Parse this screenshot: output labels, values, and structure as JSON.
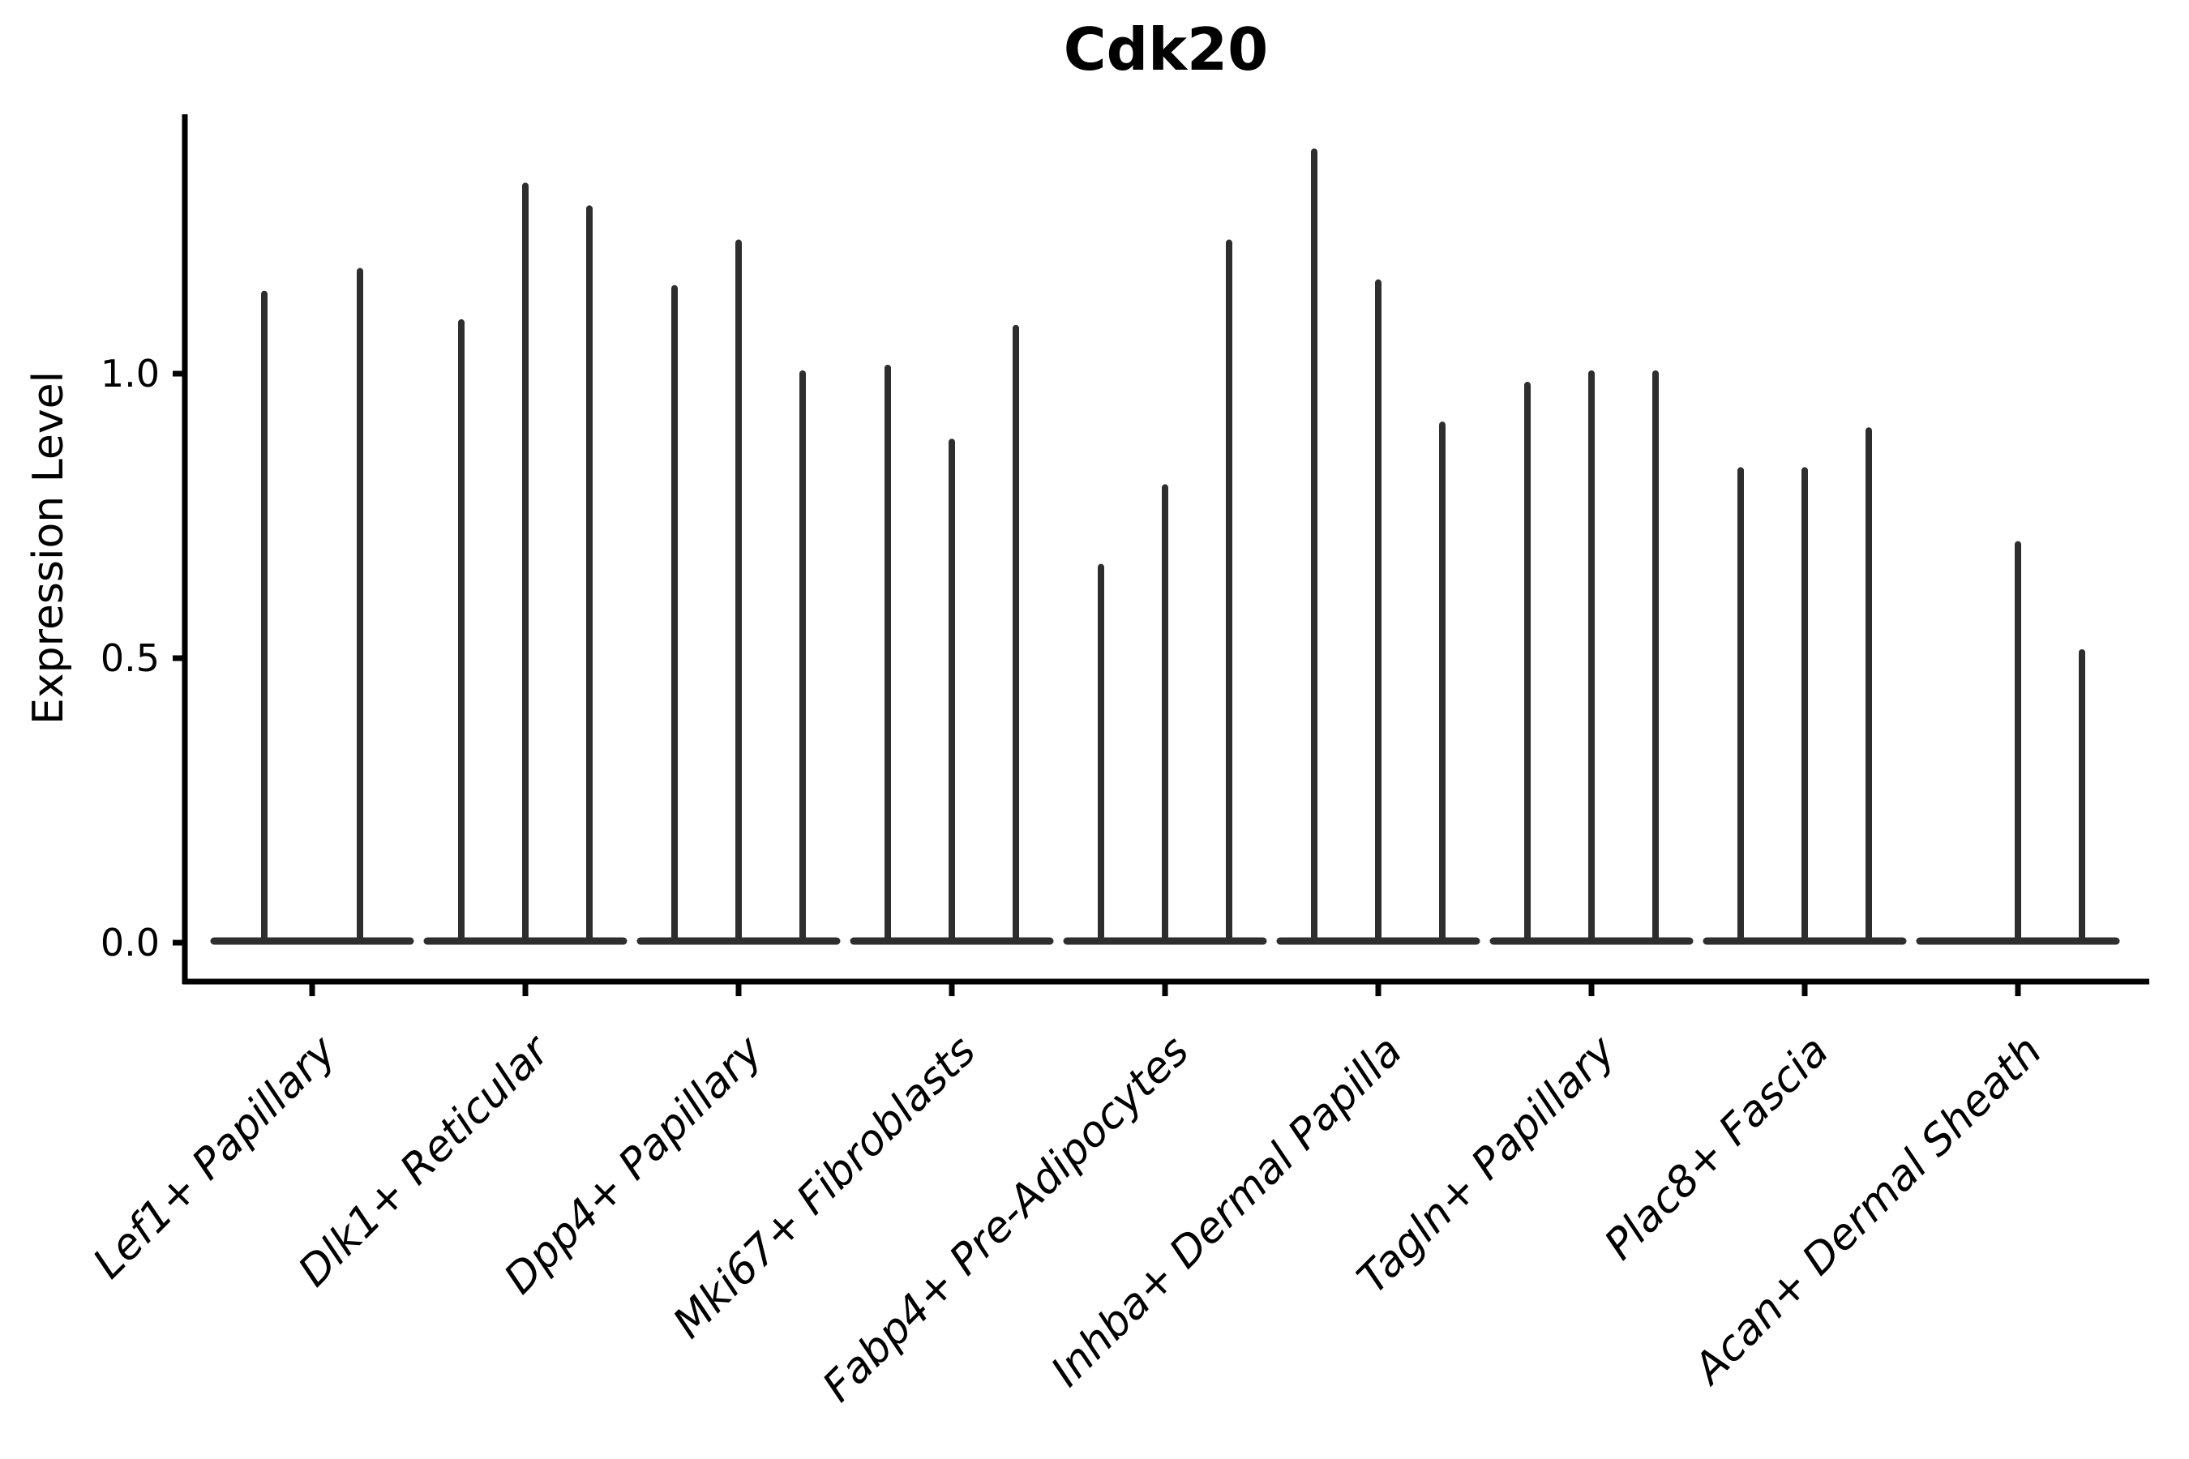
{
  "chart_data": {
    "type": "violin",
    "title": "Cdk20",
    "ylabel": "Expression Level",
    "xlabel": "",
    "grid": false,
    "legend": "none",
    "ylim": [
      0,
      1.45
    ],
    "yticks": [
      {
        "value": 0.0,
        "label": "0.0"
      },
      {
        "value": 0.5,
        "label": "0.5"
      },
      {
        "value": 1.0,
        "label": "1.0"
      }
    ],
    "note": "Each category shows narrow spike-shaped violins (expression mostly 0 with thin tail to max value); violin max expression values listed per category, 0 = flat violin at baseline",
    "categories": [
      {
        "label": "Lef1+ Papillary",
        "violins": [
          1.14,
          1.18
        ]
      },
      {
        "label": "Dlk1+ Reticular",
        "violins": [
          1.09,
          1.33,
          1.29
        ]
      },
      {
        "label": "Dpp4+ Papillary",
        "violins": [
          1.15,
          1.23,
          1.0
        ]
      },
      {
        "label": "Mki67+ Fibroblasts",
        "violins": [
          1.01,
          0.88,
          1.08
        ]
      },
      {
        "label": "Fabp4+ Pre-Adipocytes",
        "violins": [
          0.66,
          0.8,
          1.23
        ]
      },
      {
        "label": "Inhba+ Dermal Papilla",
        "violins": [
          1.39,
          1.16,
          0.91
        ]
      },
      {
        "label": "Tagln+ Papillary",
        "violins": [
          0.98,
          1.0,
          1.0
        ]
      },
      {
        "label": "Plac8+ Fascia",
        "violins": [
          0.83,
          0.83,
          0.9
        ]
      },
      {
        "label": "Acan+ Dermal Sheath",
        "violins": [
          0.0,
          0.7,
          0.51
        ]
      }
    ],
    "colors": {
      "violin": "#2e2e2e",
      "axis": "#000000",
      "text": "#000000",
      "background": "#ffffff"
    }
  }
}
